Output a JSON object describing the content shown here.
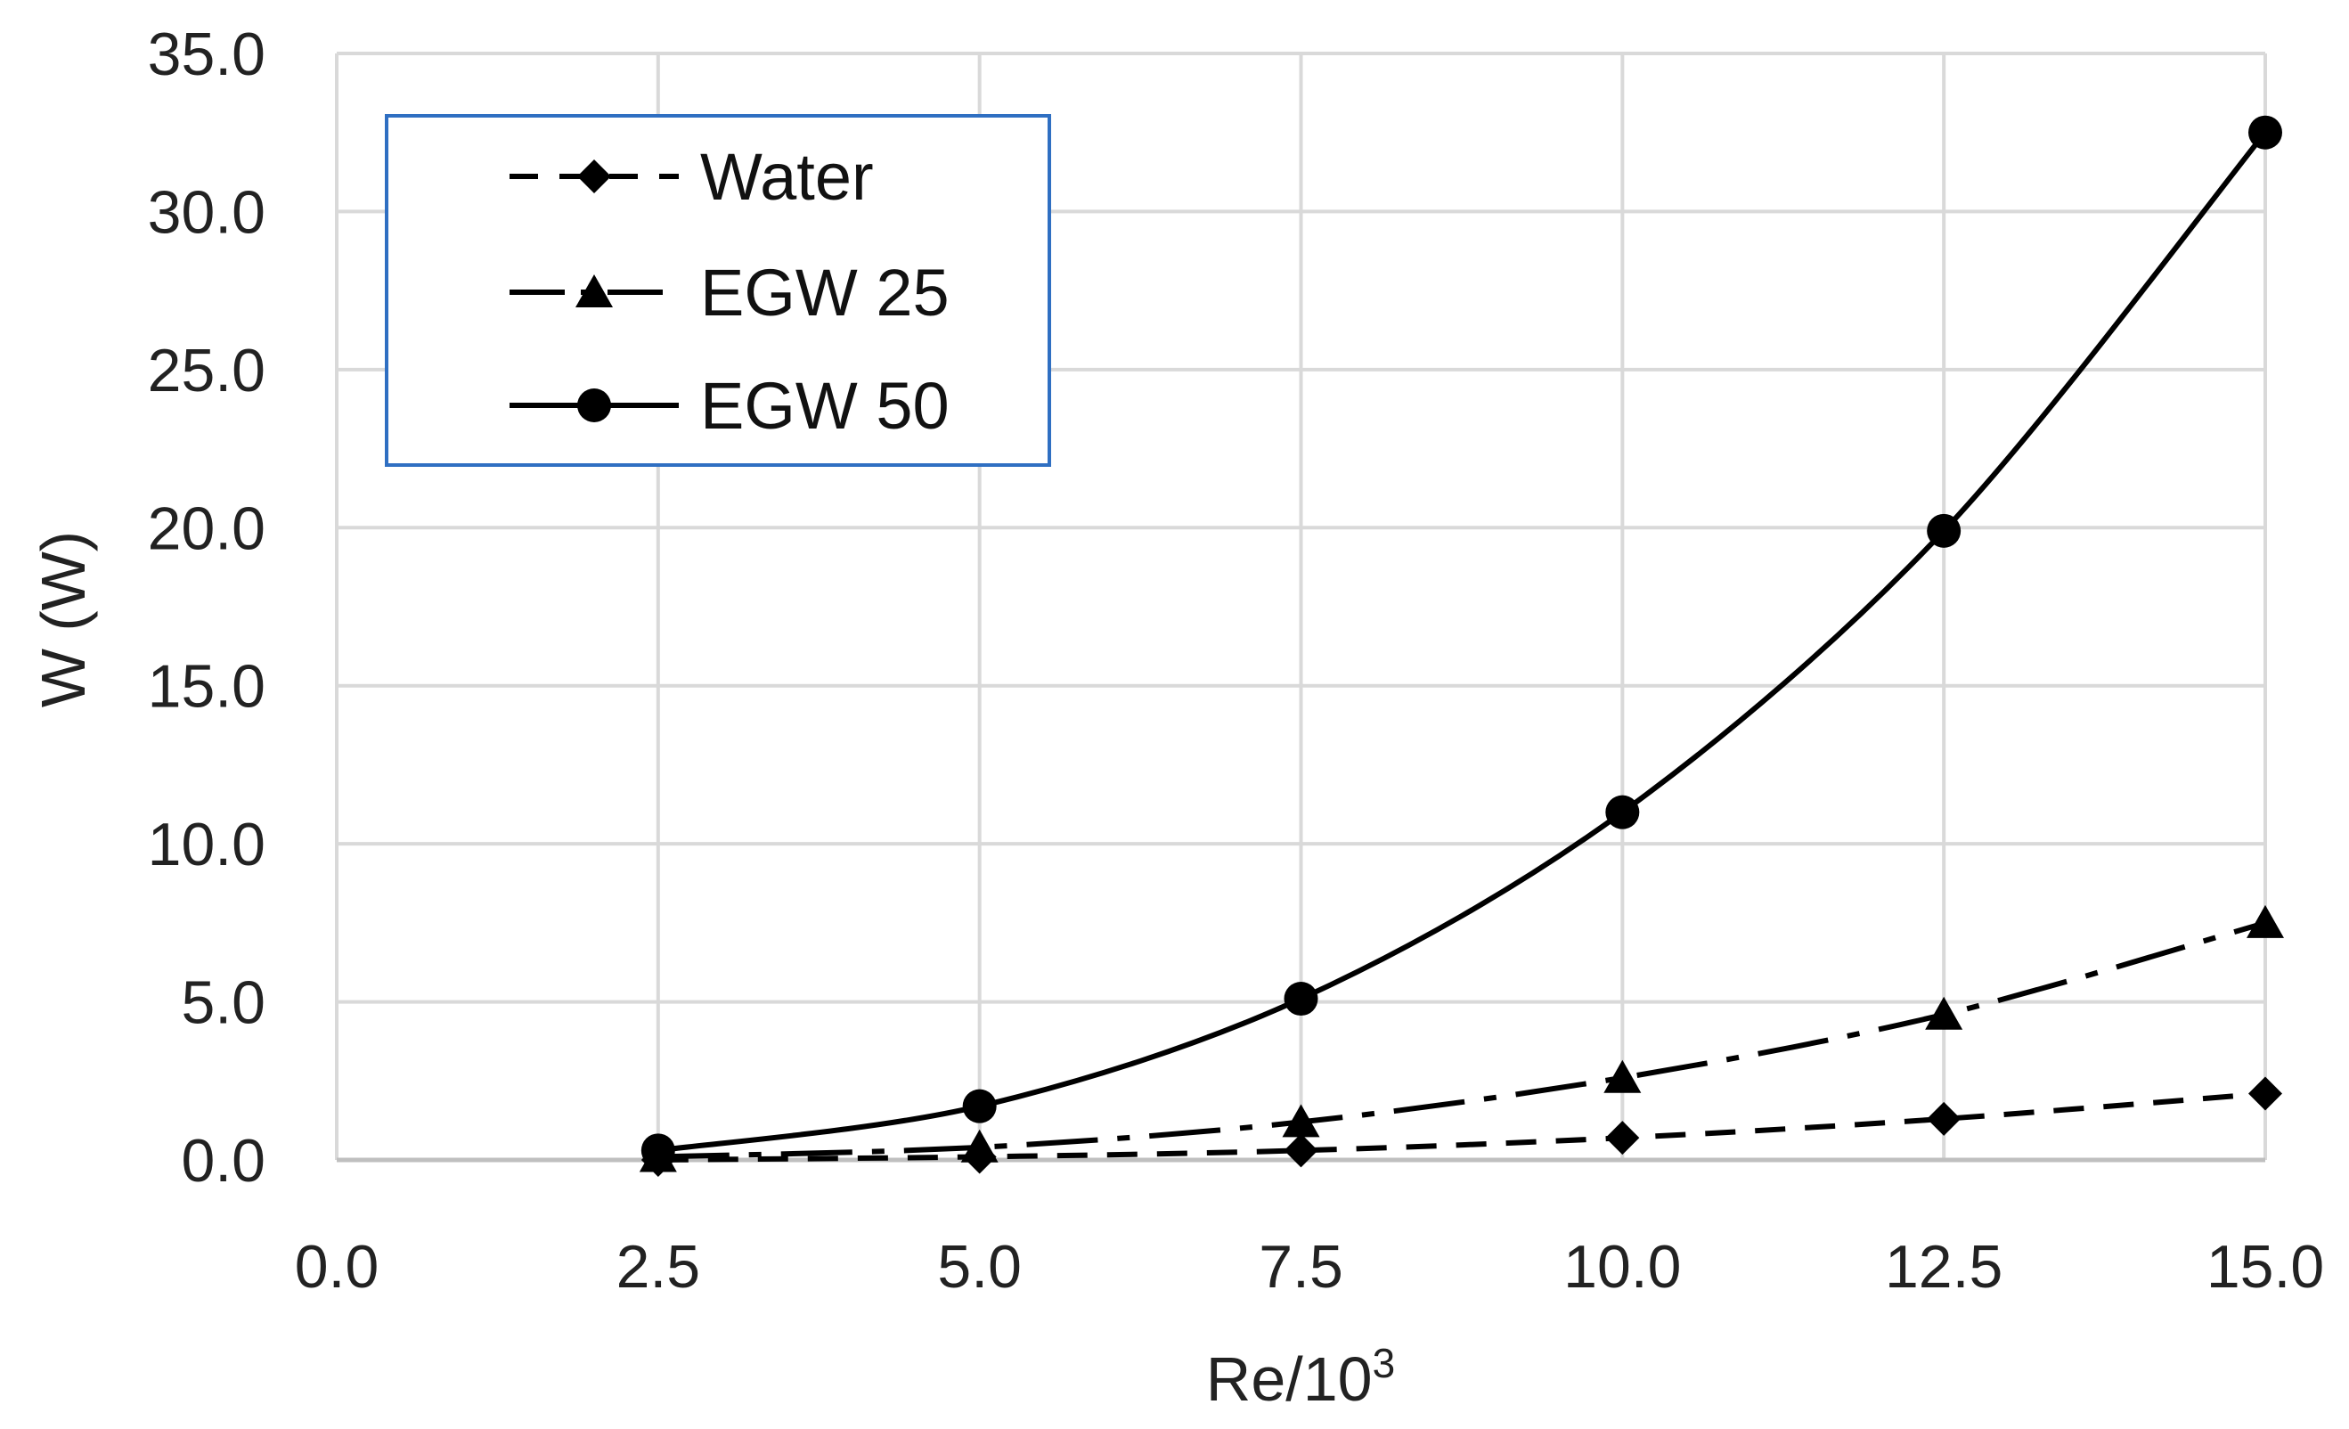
{
  "chart_data": {
    "type": "line",
    "title": "",
    "xlabel": "Re/10",
    "xlabel_superscript": "3",
    "ylabel": "W (W)",
    "xlim": [
      0.0,
      15.0
    ],
    "ylim": [
      0.0,
      35.0
    ],
    "x_ticks": [
      "0.0",
      "2.5",
      "5.0",
      "7.5",
      "10.0",
      "12.5",
      "15.0"
    ],
    "y_ticks": [
      "0.0",
      "5.0",
      "10.0",
      "15.0",
      "20.0",
      "25.0",
      "30.0",
      "35.0"
    ],
    "grid": true,
    "legend_position": "top-left",
    "x": [
      2.5,
      5.0,
      7.5,
      10.0,
      12.5,
      15.0
    ],
    "series": [
      {
        "name": "Water",
        "marker": "diamond",
        "line": "dashed",
        "values": [
          0.0,
          0.1,
          0.3,
          0.7,
          1.3,
          2.1
        ]
      },
      {
        "name": "EGW 25",
        "marker": "triangle",
        "line": "dash-dot",
        "values": [
          0.1,
          0.4,
          1.2,
          2.6,
          4.6,
          7.5
        ]
      },
      {
        "name": "EGW 50",
        "marker": "circle",
        "line": "solid",
        "values": [
          0.3,
          1.7,
          5.1,
          11.0,
          19.9,
          32.5
        ]
      }
    ],
    "colors": {
      "series": "#000000",
      "legend_border": "#2f6fc2",
      "grid": "#d9d9d9"
    }
  }
}
